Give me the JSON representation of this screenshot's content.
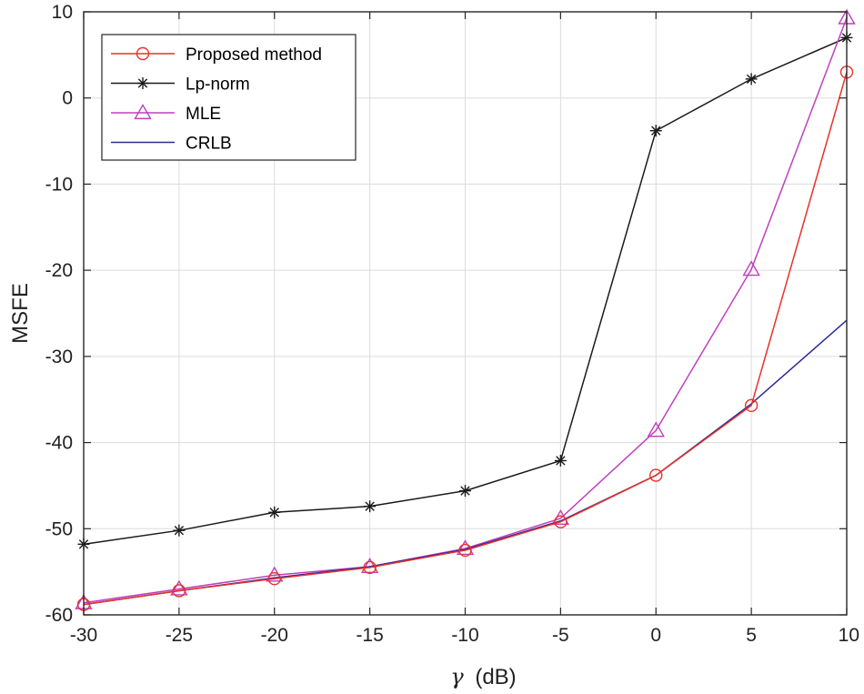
{
  "chart_data": {
    "type": "line",
    "title": "",
    "xlabel_symbol": "γ",
    "xlabel_unit": "(dB)",
    "ylabel": "MSFE",
    "x": [
      -30,
      -25,
      -20,
      -15,
      -10,
      -5,
      0,
      5,
      10
    ],
    "xlim": [
      -30,
      10
    ],
    "ylim": [
      -60,
      10
    ],
    "xticks": [
      -30,
      -25,
      -20,
      -15,
      -10,
      -5,
      0,
      5,
      10
    ],
    "yticks": [
      -60,
      -50,
      -40,
      -30,
      -20,
      -10,
      0,
      10
    ],
    "grid": true,
    "legend_position": "top-left",
    "series": [
      {
        "name": "Proposed method",
        "color": "#e8312a",
        "marker": "circle",
        "values": [
          -58.8,
          -57.2,
          -55.8,
          -54.5,
          -52.5,
          -49.2,
          -43.8,
          -35.7,
          3.0
        ]
      },
      {
        "name": "Lp-norm",
        "color": "#1a1a1a",
        "marker": "star",
        "values": [
          -51.8,
          -50.2,
          -48.1,
          -47.4,
          -45.6,
          -42.1,
          -3.8,
          2.2,
          7.0
        ]
      },
      {
        "name": "MLE",
        "color": "#c03fbf",
        "marker": "triangle",
        "values": [
          -58.6,
          -57.0,
          -55.4,
          -54.4,
          -52.3,
          -48.8,
          -38.6,
          -19.9,
          9.3
        ]
      },
      {
        "name": "CRLB",
        "color": "#2a2a9a",
        "marker": "none",
        "values": [
          -58.8,
          -57.2,
          -55.7,
          -54.4,
          -52.4,
          -49.1,
          -43.8,
          -35.5,
          -25.8
        ]
      }
    ]
  }
}
